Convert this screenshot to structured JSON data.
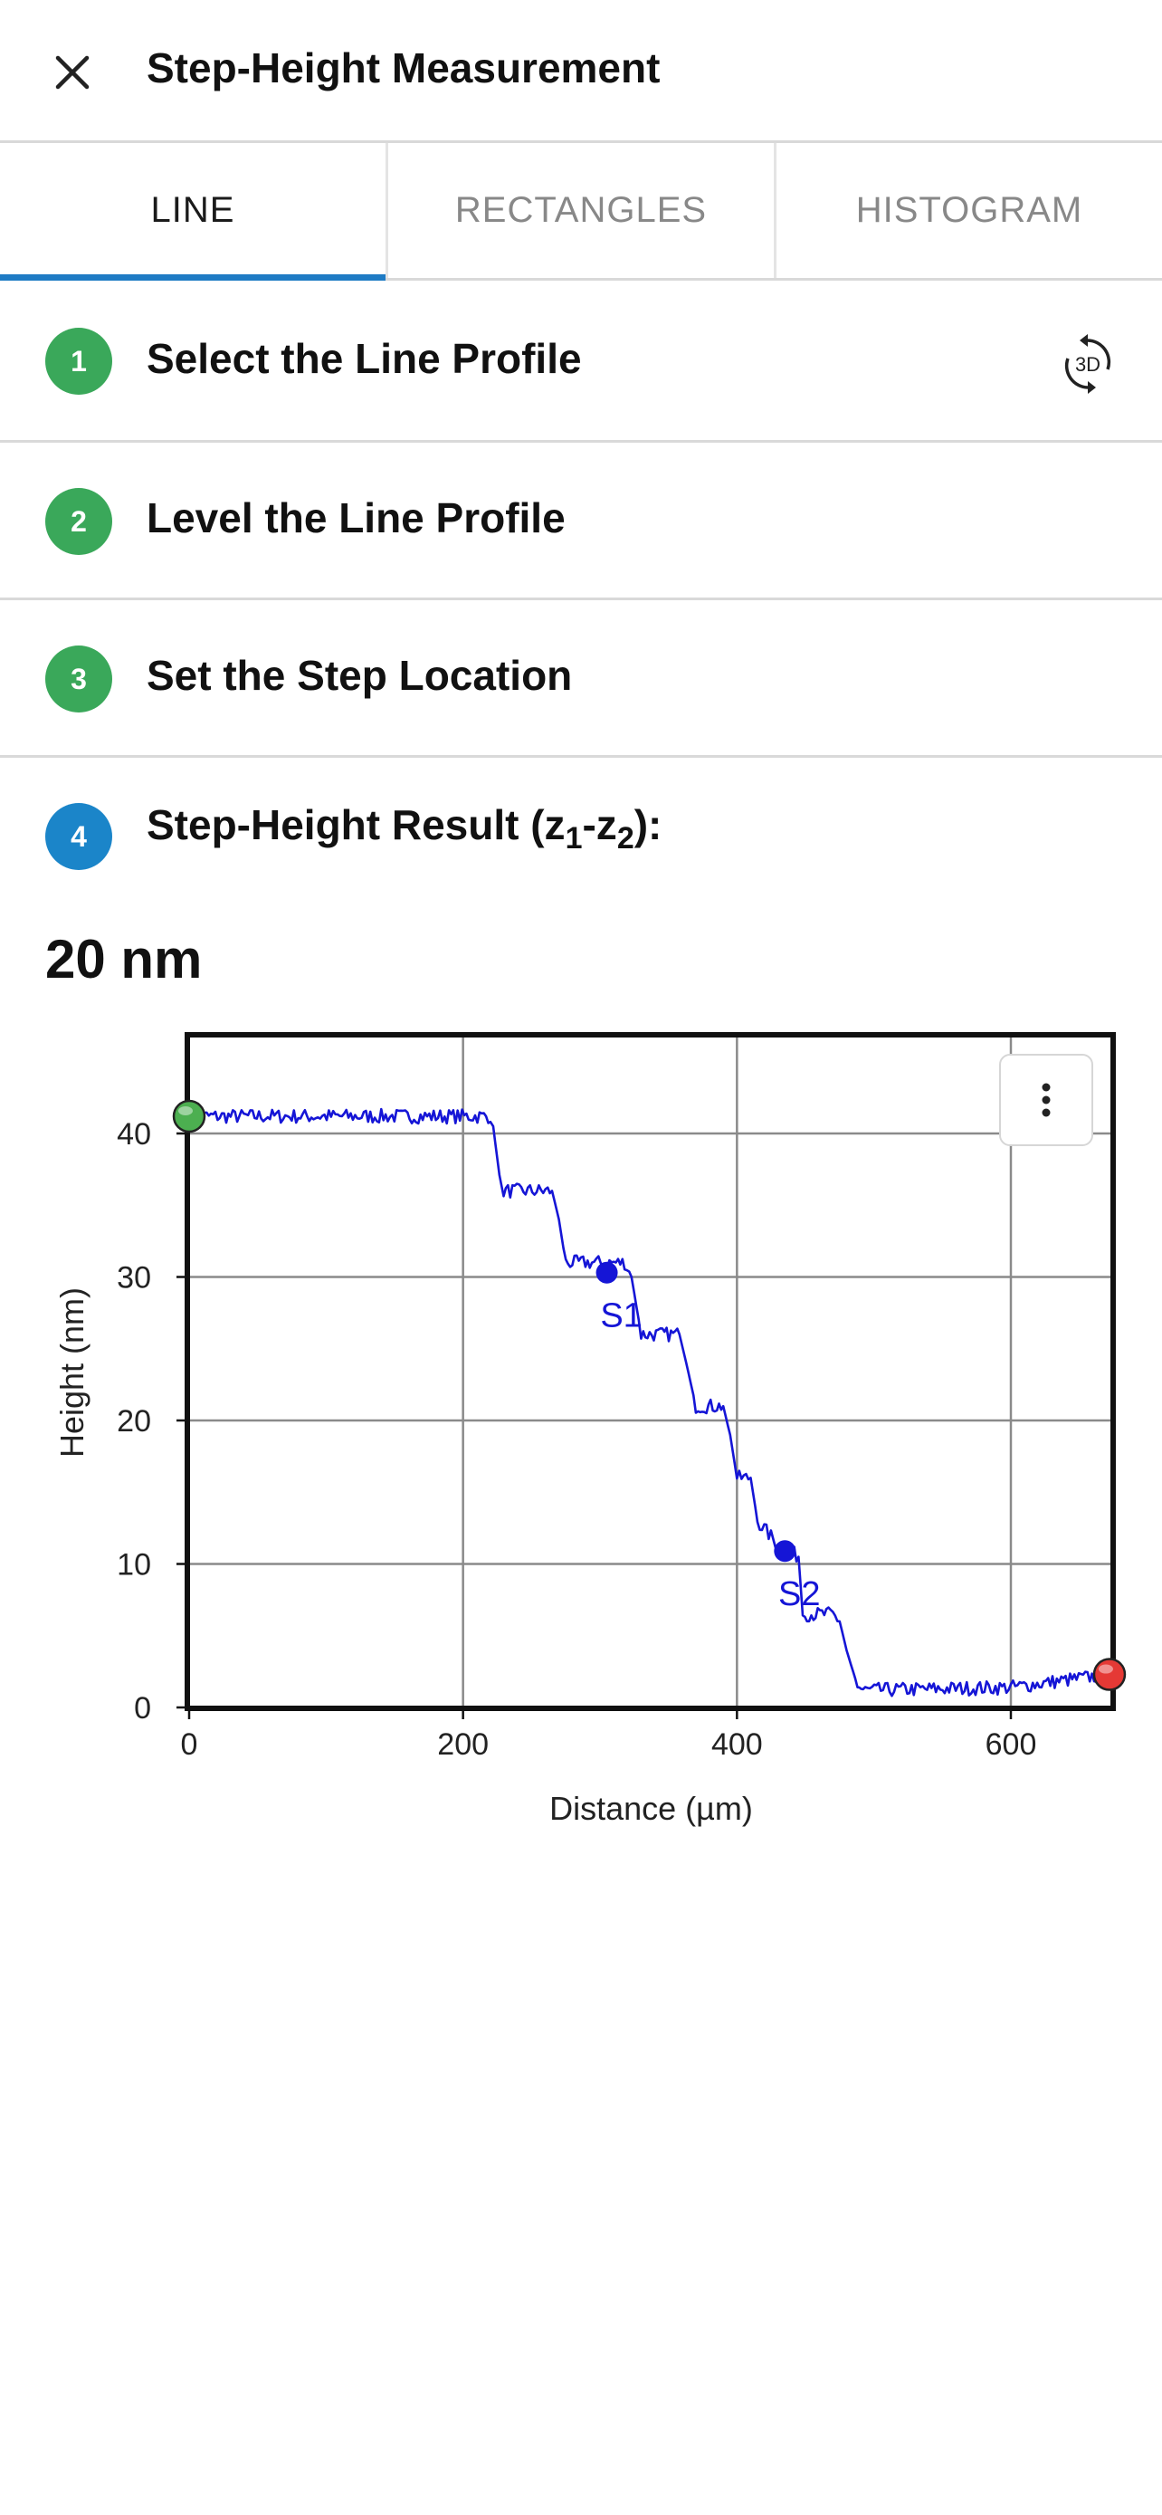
{
  "header": {
    "title": "Step-Height Measurement",
    "close_icon": "close-icon"
  },
  "tabs": [
    {
      "label": "LINE",
      "active": true
    },
    {
      "label": "RECTANGLES",
      "active": false
    },
    {
      "label": "HISTOGRAM",
      "active": false
    }
  ],
  "steps": [
    {
      "number": "1",
      "label": "Select the Line Profile",
      "status": "done",
      "color": "#3aa85a"
    },
    {
      "number": "2",
      "label": "Level the Line Profile",
      "status": "done",
      "color": "#3aa85a"
    },
    {
      "number": "3",
      "label": "Set the Step Location",
      "status": "done",
      "color": "#3aa85a"
    },
    {
      "number": "4",
      "label_prefix": "Step-Height Result (z",
      "label_sub1": "1",
      "label_mid": "-z",
      "label_sub2": "2",
      "label_suffix": "):",
      "status": "current",
      "color": "#1b85c9"
    }
  ],
  "view_3d_button": {
    "icon": "3d-rotate-icon",
    "text": "3D"
  },
  "result": {
    "value": "20 nm"
  },
  "chart_menu": {
    "icon": "more-vertical-icon"
  },
  "chart_data": {
    "type": "line",
    "xlabel": "Distance (µm)",
    "ylabel": "Height (nm)",
    "xlim": [
      0,
      672
    ],
    "ylim": [
      0,
      46
    ],
    "xticks": [
      0,
      200,
      400,
      600
    ],
    "yticks": [
      0,
      10,
      20,
      30,
      40
    ],
    "grid": true,
    "line_color": "#1515d6",
    "series": [
      {
        "x": [
          0,
          220,
          222,
          228,
          265,
          270,
          275,
          318,
          323,
          330,
          358,
          363,
          370,
          390,
          395,
          400,
          410,
          415,
          433,
          437,
          445,
          448,
          470,
          475,
          480,
          488,
          492,
          497,
          600,
          672
        ],
        "y": [
          41.2,
          41.2,
          40.5,
          36.0,
          36.0,
          34.0,
          31.0,
          31.0,
          30.0,
          26.0,
          26.0,
          24.0,
          21.0,
          21.0,
          19.0,
          16.0,
          16.0,
          13.0,
          11.0,
          11.0,
          10.5,
          6.5,
          6.5,
          6.0,
          4.0,
          1.5,
          1.2,
          1.2,
          1.4,
          2.3
        ]
      }
    ],
    "markers": [
      {
        "label": "S1",
        "x": 305,
        "y": 30.3,
        "color": "#1515d6"
      },
      {
        "label": "S2",
        "x": 435,
        "y": 10.9,
        "color": "#1515d6"
      }
    ],
    "endpoints": [
      {
        "x": 0,
        "y": 41.2,
        "color": "#4caf50"
      },
      {
        "x": 672,
        "y": 2.3,
        "color": "#e53935"
      }
    ]
  }
}
